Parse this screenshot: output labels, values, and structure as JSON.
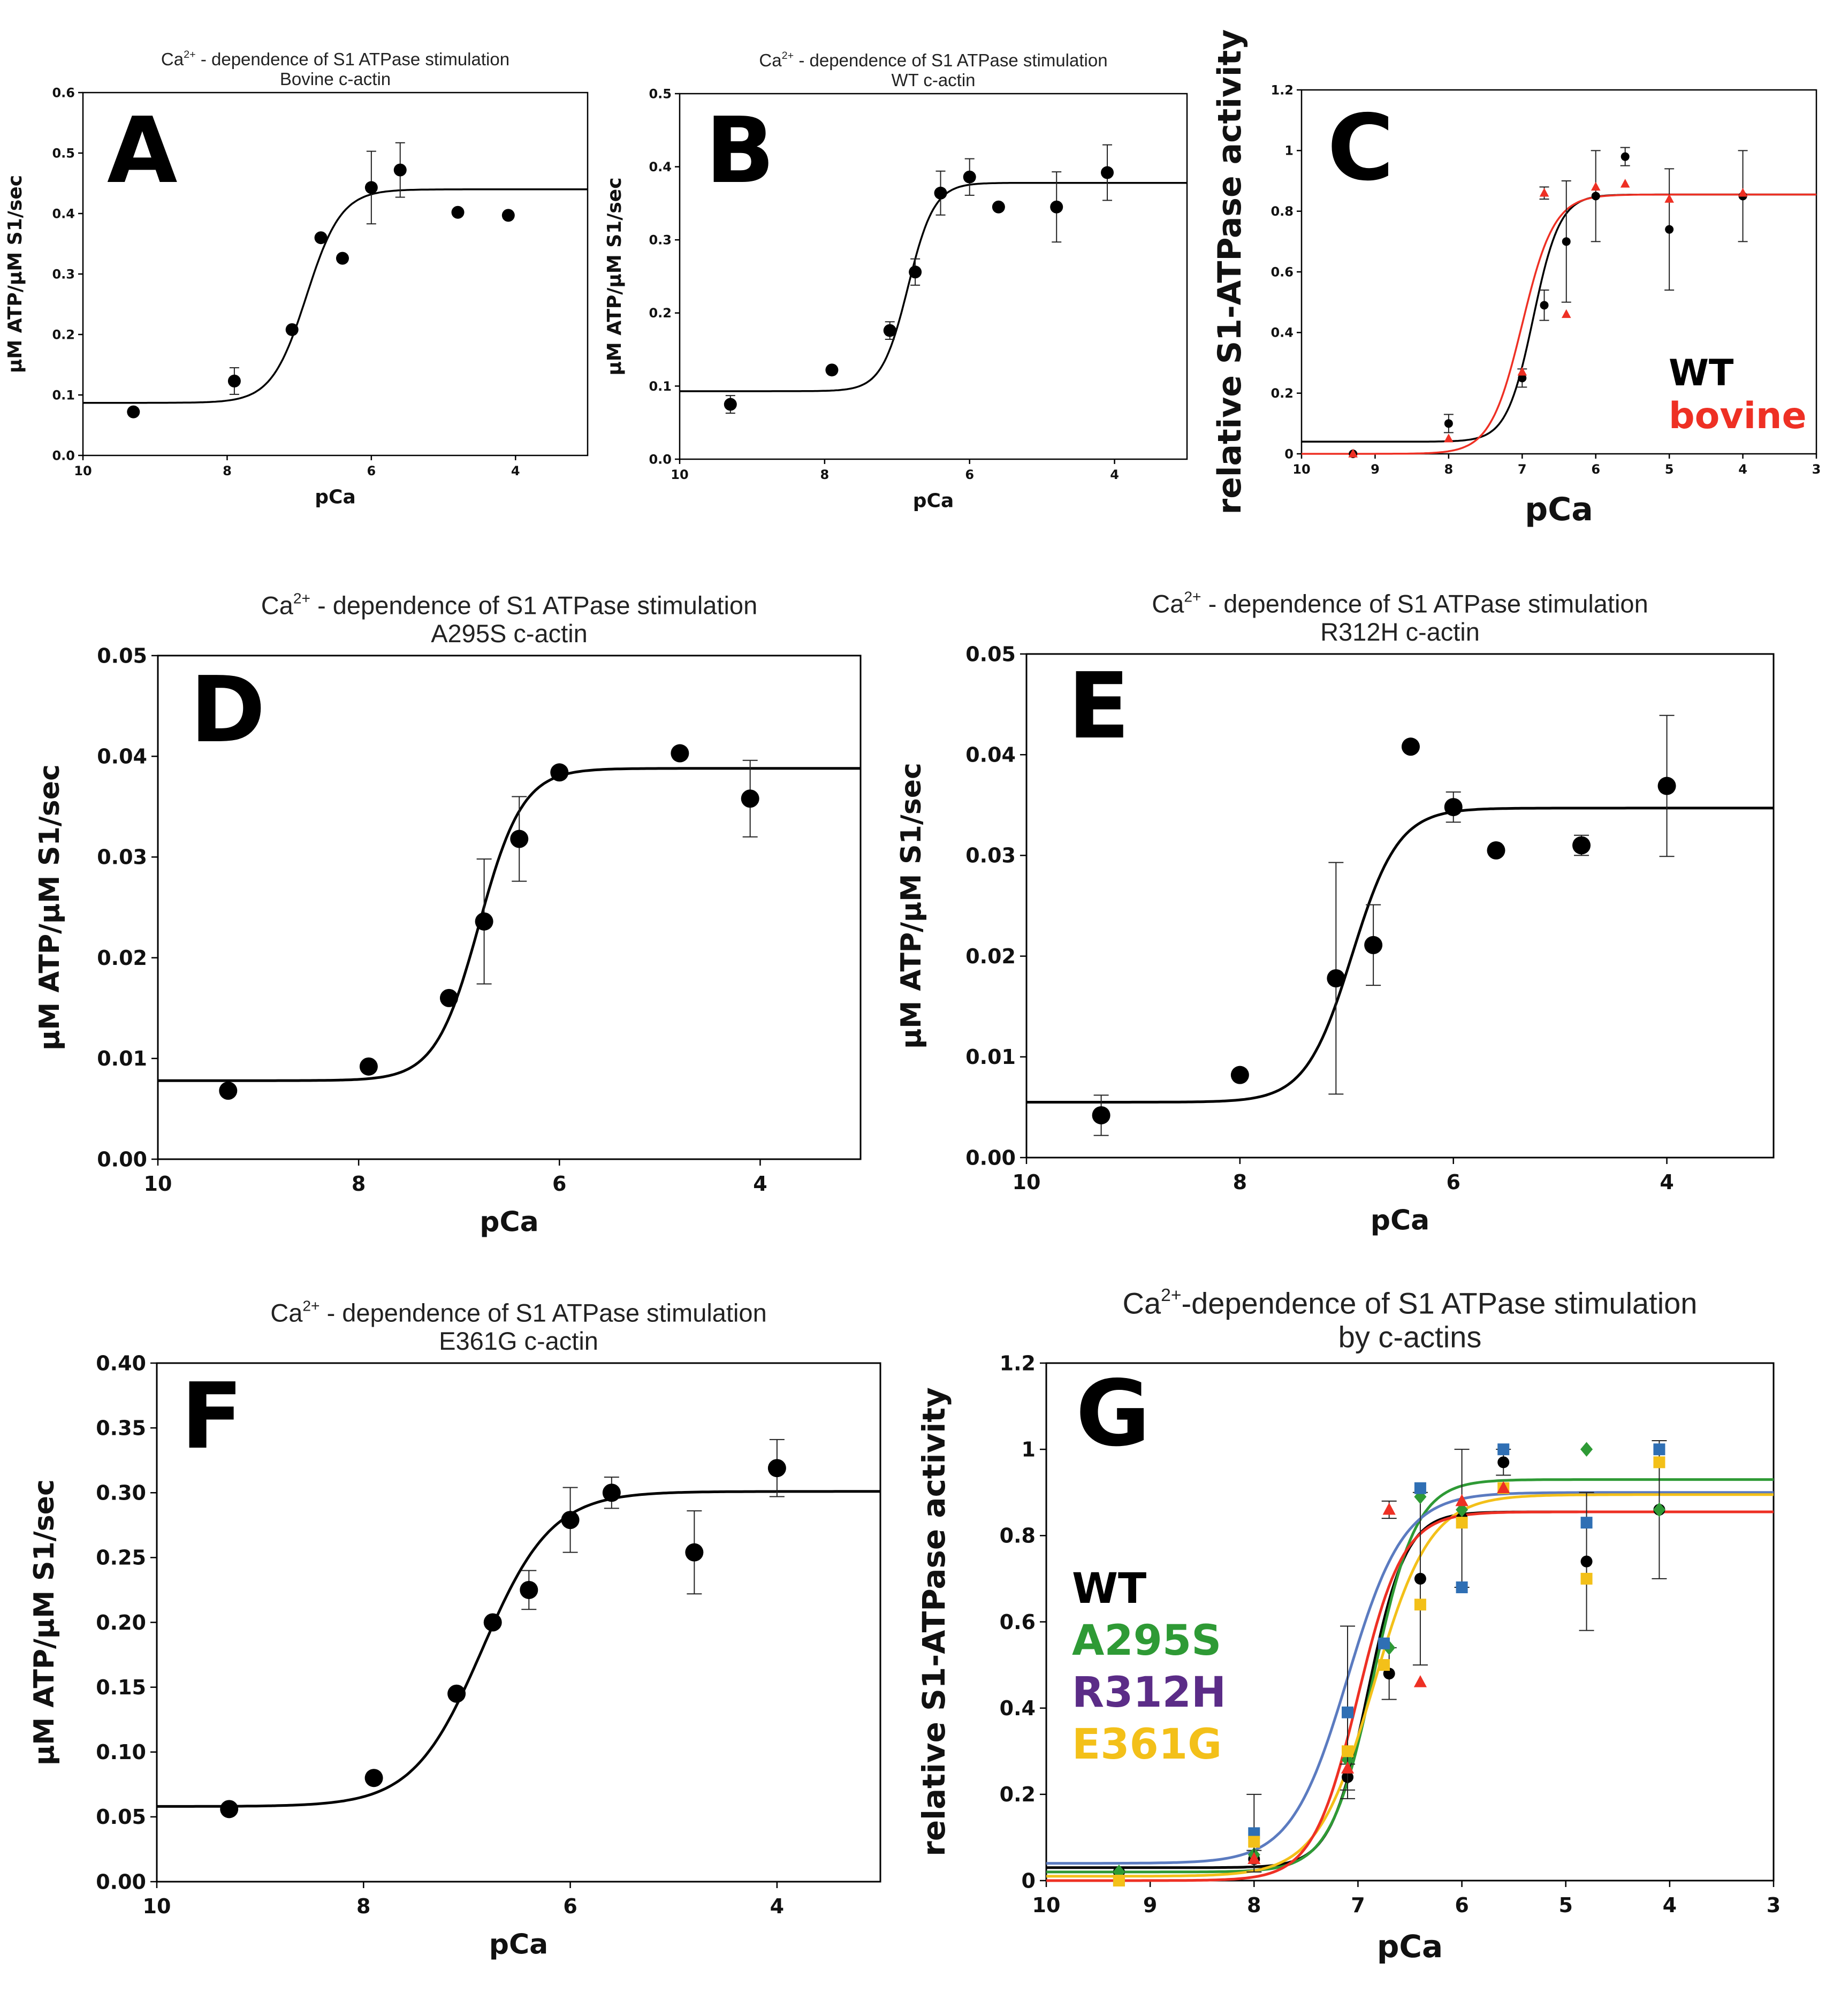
{
  "colors": {
    "WT": "#000000",
    "bovine": "#ee3024",
    "A295S": "#2e9a35",
    "R312H": "#5b2c87",
    "E361G": "#f3c019",
    "blue": "#2f6fb4",
    "curve_blue": "#5b7bc0"
  },
  "chart_data": [
    {
      "id": "A",
      "panel_label": "A",
      "type": "scatter",
      "title_pre": "Ca",
      "title_sup": "2+",
      "title_post": " - dependence  of S1 ATPase stimulation",
      "subtitle": "Bovine c-actin",
      "xlabel": "pCa",
      "ylabel": "µM ATP/µM S1/sec",
      "xlim": [
        10,
        3
      ],
      "ylim": [
        0,
        0.6
      ],
      "xticks": [
        10,
        8,
        6,
        4
      ],
      "xtick_labels": [
        "10",
        "8",
        "6",
        "4"
      ],
      "yticks": [
        0,
        0.1,
        0.2,
        0.3,
        0.4,
        0.5,
        0.6
      ],
      "ytick_labels": [
        "0.0",
        "0.1",
        "0.2",
        "0.3",
        "0.4",
        "0.5",
        "0.6"
      ],
      "series": [
        {
          "name": "Bovine c-actin",
          "color_key": "WT",
          "marker": "circle",
          "points": [
            [
              9.3,
              0.072
            ],
            [
              7.9,
              0.123
            ],
            [
              7.1,
              0.208
            ],
            [
              6.7,
              0.36
            ],
            [
              6.4,
              0.326
            ],
            [
              6.0,
              0.443
            ],
            [
              5.6,
              0.472
            ],
            [
              4.8,
              0.402
            ],
            [
              4.1,
              0.397
            ]
          ],
          "errors": [
            null,
            0.022,
            null,
            null,
            null,
            0.06,
            0.045,
            null,
            null
          ],
          "fit": {
            "bottom": 0.087,
            "top": 0.44,
            "pca50": 6.9,
            "n": 1.8
          }
        }
      ]
    },
    {
      "id": "B",
      "panel_label": "B",
      "type": "scatter",
      "title_pre": "Ca",
      "title_sup": "2+",
      "title_post": " - dependence  of S1 ATPase stimulation",
      "subtitle": "WT c-actin",
      "xlabel": "pCa",
      "ylabel": "µM ATP/µM S1/sec",
      "xlim": [
        10,
        3
      ],
      "ylim": [
        0,
        0.5
      ],
      "xticks": [
        10,
        8,
        6,
        4
      ],
      "xtick_labels": [
        "10",
        "8",
        "6",
        "4"
      ],
      "yticks": [
        0,
        0.1,
        0.2,
        0.3,
        0.4,
        0.5
      ],
      "ytick_labels": [
        "0.0",
        "0.1",
        "0.2",
        "0.3",
        "0.4",
        "0.5"
      ],
      "series": [
        {
          "name": "WT c-actin",
          "color_key": "WT",
          "marker": "circle",
          "points": [
            [
              9.3,
              0.075
            ],
            [
              7.9,
              0.122
            ],
            [
              7.1,
              0.176
            ],
            [
              6.75,
              0.256
            ],
            [
              6.4,
              0.364
            ],
            [
              6.0,
              0.386
            ],
            [
              5.6,
              0.345
            ],
            [
              4.8,
              0.345
            ],
            [
              4.1,
              0.392
            ]
          ],
          "errors": [
            0.012,
            null,
            0.012,
            0.018,
            0.03,
            0.025,
            null,
            0.048,
            0.038
          ],
          "fit": {
            "bottom": 0.093,
            "top": 0.378,
            "pca50": 6.85,
            "n": 2.4
          }
        }
      ]
    },
    {
      "id": "C",
      "panel_label": "C",
      "type": "scatter",
      "title_pre": "",
      "title_sup": "",
      "title_post": "",
      "subtitle": "",
      "xlabel": "pCa",
      "ylabel": "relative S1-ATPase activity",
      "xlim": [
        10,
        3
      ],
      "ylim": [
        0,
        1.2
      ],
      "xticks": [
        10,
        9,
        8,
        7,
        6,
        5,
        4,
        3
      ],
      "xtick_labels": [
        "10",
        "9",
        "8",
        "7",
        "6",
        "5",
        "4",
        "3"
      ],
      "yticks": [
        0,
        0.2,
        0.4,
        0.6,
        0.8,
        1.0,
        1.2
      ],
      "ytick_labels": [
        "0",
        "0.2",
        "0.4",
        "0.6",
        "0.8",
        "1",
        "1.2"
      ],
      "legend": [
        "WT",
        "bovine"
      ],
      "series": [
        {
          "name": "WT",
          "color_key": "WT",
          "marker": "circle",
          "points": [
            [
              9.3,
              0.0
            ],
            [
              8.0,
              0.1
            ],
            [
              7.0,
              0.25
            ],
            [
              6.7,
              0.49
            ],
            [
              6.4,
              0.7
            ],
            [
              6.0,
              0.85
            ],
            [
              5.6,
              0.98
            ],
            [
              5.0,
              0.74
            ],
            [
              4.0,
              0.85
            ]
          ],
          "errors": [
            null,
            0.03,
            0.03,
            0.05,
            0.2,
            0.15,
            0.03,
            0.2,
            0.15
          ],
          "fit": {
            "bottom": 0.04,
            "top": 0.855,
            "pca50": 6.85,
            "n": 2.4
          }
        },
        {
          "name": "bovine",
          "color_key": "bovine",
          "marker": "triangle",
          "points": [
            [
              9.3,
              0.0
            ],
            [
              8.0,
              0.05
            ],
            [
              7.0,
              0.27
            ],
            [
              6.7,
              0.86
            ],
            [
              6.4,
              0.46
            ],
            [
              6.0,
              0.88
            ],
            [
              5.6,
              0.89
            ],
            [
              5.0,
              0.84
            ],
            [
              4.0,
              0.86
            ]
          ],
          "errors": [
            null,
            null,
            null,
            0.02,
            null,
            null,
            null,
            null,
            null
          ],
          "fit": {
            "bottom": 0.0,
            "top": 0.855,
            "pca50": 7.0,
            "n": 2.0
          }
        }
      ]
    },
    {
      "id": "D",
      "panel_label": "D",
      "type": "scatter",
      "title_pre": "Ca",
      "title_sup": "2+",
      "title_post": " - dependence  of S1 ATPase stimulation",
      "subtitle": "A295S c-actin",
      "xlabel": "pCa",
      "ylabel": "µM ATP/µM S1/sec",
      "xlim": [
        10,
        3
      ],
      "ylim": [
        0,
        0.05
      ],
      "xticks": [
        10,
        8,
        6,
        4
      ],
      "xtick_labels": [
        "10",
        "8",
        "6",
        "4"
      ],
      "yticks": [
        0,
        0.01,
        0.02,
        0.03,
        0.04,
        0.05
      ],
      "ytick_labels": [
        "0.00",
        "0.01",
        "0.02",
        "0.03",
        "0.04",
        "0.05"
      ],
      "series": [
        {
          "name": "A295S c-actin",
          "color_key": "WT",
          "marker": "circle",
          "points": [
            [
              9.3,
              0.0068
            ],
            [
              7.9,
              0.0092
            ],
            [
              7.1,
              0.016
            ],
            [
              6.75,
              0.0236
            ],
            [
              6.4,
              0.0318
            ],
            [
              6.0,
              0.0384
            ],
            [
              4.8,
              0.0403
            ],
            [
              4.1,
              0.0358
            ]
          ],
          "errors": [
            null,
            null,
            null,
            0.0062,
            0.0042,
            null,
            null,
            0.0038
          ],
          "fit": {
            "bottom": 0.0078,
            "top": 0.0388,
            "pca50": 6.8,
            "n": 2.0
          }
        }
      ]
    },
    {
      "id": "E",
      "panel_label": "E",
      "type": "scatter",
      "title_pre": "Ca",
      "title_sup": "2+",
      "title_post": " - dependence  of S1 ATPase stimulation",
      "subtitle": "R312H c-actin",
      "xlabel": "pCa",
      "ylabel": "µM ATP/µM S1/sec",
      "xlim": [
        10,
        3
      ],
      "ylim": [
        0,
        0.05
      ],
      "xticks": [
        10,
        8,
        6,
        4
      ],
      "xtick_labels": [
        "10",
        "8",
        "6",
        "4"
      ],
      "yticks": [
        0,
        0.01,
        0.02,
        0.03,
        0.04,
        0.05
      ],
      "ytick_labels": [
        "0.00",
        "0.01",
        "0.02",
        "0.03",
        "0.04",
        "0.05"
      ],
      "series": [
        {
          "name": "R312H c-actin",
          "color_key": "WT",
          "marker": "circle",
          "points": [
            [
              9.3,
              0.0042
            ],
            [
              8.0,
              0.0082
            ],
            [
              7.1,
              0.0178
            ],
            [
              6.75,
              0.0211
            ],
            [
              6.4,
              0.0408
            ],
            [
              6.0,
              0.0348
            ],
            [
              5.6,
              0.0305
            ],
            [
              4.8,
              0.031
            ],
            [
              4.0,
              0.0369
            ]
          ],
          "errors": [
            0.002,
            null,
            0.0115,
            0.004,
            null,
            0.0015,
            null,
            0.001,
            0.007
          ],
          "fit": {
            "bottom": 0.0055,
            "top": 0.0347,
            "pca50": 6.95,
            "n": 2.0
          }
        }
      ]
    },
    {
      "id": "F",
      "panel_label": "F",
      "type": "scatter",
      "title_pre": "Ca",
      "title_sup": "2+",
      "title_post": " - dependence  of S1 ATPase stimulation",
      "subtitle": "E361G c-actin",
      "xlabel": "pCa",
      "ylabel": "µM ATP/µM S1/sec",
      "xlim": [
        10,
        3
      ],
      "ylim": [
        0,
        0.4
      ],
      "xticks": [
        10,
        8,
        6,
        4
      ],
      "xtick_labels": [
        "10",
        "8",
        "6",
        "4"
      ],
      "yticks": [
        0,
        0.05,
        0.1,
        0.15,
        0.2,
        0.25,
        0.3,
        0.35,
        0.4
      ],
      "ytick_labels": [
        "0.00",
        "0.05",
        "0.10",
        "0.15",
        "0.20",
        "0.25",
        "0.30",
        "0.35",
        "0.40"
      ],
      "series": [
        {
          "name": "E361G c-actin",
          "color_key": "WT",
          "marker": "circle",
          "points": [
            [
              9.3,
              0.056
            ],
            [
              7.9,
              0.08
            ],
            [
              7.1,
              0.145
            ],
            [
              6.75,
              0.2
            ],
            [
              6.4,
              0.225
            ],
            [
              6.0,
              0.279
            ],
            [
              5.6,
              0.3
            ],
            [
              4.8,
              0.254
            ],
            [
              4.0,
              0.319
            ]
          ],
          "errors": [
            null,
            null,
            null,
            null,
            0.015,
            0.025,
            0.012,
            0.032,
            0.022
          ],
          "fit": {
            "bottom": 0.058,
            "top": 0.301,
            "pca50": 6.85,
            "n": 1.3
          }
        }
      ]
    },
    {
      "id": "G",
      "panel_label": "G",
      "type": "scatter",
      "title_pre": "Ca",
      "title_sup": "2+",
      "title_post": "-dependence of S1 ATPase stimulation",
      "subtitle": "by c-actins",
      "xlabel": "pCa",
      "ylabel": "relative S1-ATPase activity",
      "xlim": [
        10,
        3
      ],
      "ylim": [
        0,
        1.2
      ],
      "xticks": [
        10,
        9,
        8,
        7,
        6,
        5,
        4,
        3
      ],
      "xtick_labels": [
        "10",
        "9",
        "8",
        "7",
        "6",
        "5",
        "4",
        "3"
      ],
      "yticks": [
        0,
        0.2,
        0.4,
        0.6,
        0.8,
        1.0,
        1.2
      ],
      "ytick_labels": [
        "0",
        "0.2",
        "0.4",
        "0.6",
        "0.8",
        "1",
        "1.2"
      ],
      "legend": [
        "WT",
        "A295S",
        "R312H",
        "E361G"
      ],
      "series": [
        {
          "name": "WT",
          "color_key": "WT",
          "marker": "circle",
          "points": [
            [
              9.3,
              0.02
            ],
            [
              8.0,
              0.05
            ],
            [
              7.1,
              0.24
            ],
            [
              6.7,
              0.48
            ],
            [
              6.4,
              0.7
            ],
            [
              6.0,
              0.84
            ],
            [
              5.6,
              0.97
            ],
            [
              4.8,
              0.74
            ],
            [
              4.1,
              0.86
            ]
          ],
          "errors": [
            null,
            0.02,
            0.03,
            0.06,
            0.2,
            0.16,
            0.03,
            0.16,
            0.16
          ],
          "fit": {
            "bottom": 0.03,
            "top": 0.855,
            "pca50": 6.9,
            "n": 2.4
          }
        },
        {
          "name": "A295S",
          "color_key": "A295S",
          "marker": "diamond",
          "points": [
            [
              9.3,
              0.02
            ],
            [
              8.0,
              0.06
            ],
            [
              7.1,
              0.28
            ],
            [
              6.7,
              0.54
            ],
            [
              6.4,
              0.89
            ],
            [
              6.0,
              0.86
            ],
            [
              4.8,
              1.0
            ],
            [
              4.1,
              0.86
            ]
          ],
          "errors": [
            null,
            null,
            null,
            null,
            null,
            null,
            null,
            null
          ],
          "fit": {
            "bottom": 0.02,
            "top": 0.93,
            "pca50": 6.85,
            "n": 2.1
          }
        },
        {
          "name": "R312H",
          "color_key": "blue",
          "marker": "square",
          "points": [
            [
              9.3,
              0.0
            ],
            [
              8.0,
              0.11
            ],
            [
              7.1,
              0.39
            ],
            [
              6.75,
              0.55
            ],
            [
              6.4,
              0.91
            ],
            [
              6.0,
              0.68
            ],
            [
              5.6,
              1.0
            ],
            [
              4.8,
              0.83
            ],
            [
              4.1,
              1.0
            ]
          ],
          "errors": [
            null,
            0.09,
            0.2,
            null,
            null,
            null,
            null,
            null,
            null
          ],
          "fit": {
            "bottom": 0.04,
            "top": 0.9,
            "pca50": 7.1,
            "n": 1.6
          },
          "curve_color_key": "curve_blue"
        },
        {
          "name": "E361G",
          "color_key": "E361G",
          "marker": "square",
          "points": [
            [
              9.3,
              0.0
            ],
            [
              8.0,
              0.09
            ],
            [
              7.1,
              0.3
            ],
            [
              6.75,
              0.5
            ],
            [
              6.4,
              0.64
            ],
            [
              6.0,
              0.83
            ],
            [
              5.6,
              0.91
            ],
            [
              4.8,
              0.7
            ],
            [
              4.1,
              0.97
            ]
          ],
          "errors": [
            null,
            null,
            null,
            null,
            null,
            null,
            null,
            null,
            null
          ],
          "fit": {
            "bottom": 0.01,
            "top": 0.895,
            "pca50": 6.85,
            "n": 1.6
          }
        },
        {
          "name": "bovine",
          "color_key": "bovine",
          "marker": "triangle",
          "points": [
            [
              8.0,
              0.05
            ],
            [
              7.1,
              0.26
            ],
            [
              6.7,
              0.86
            ],
            [
              6.4,
              0.46
            ],
            [
              6.0,
              0.88
            ],
            [
              5.6,
              0.91
            ]
          ],
          "errors": [
            null,
            null,
            0.02,
            null,
            null,
            null
          ],
          "fit": {
            "bottom": 0.0,
            "top": 0.855,
            "pca50": 7.0,
            "n": 2.0
          }
        }
      ]
    }
  ]
}
